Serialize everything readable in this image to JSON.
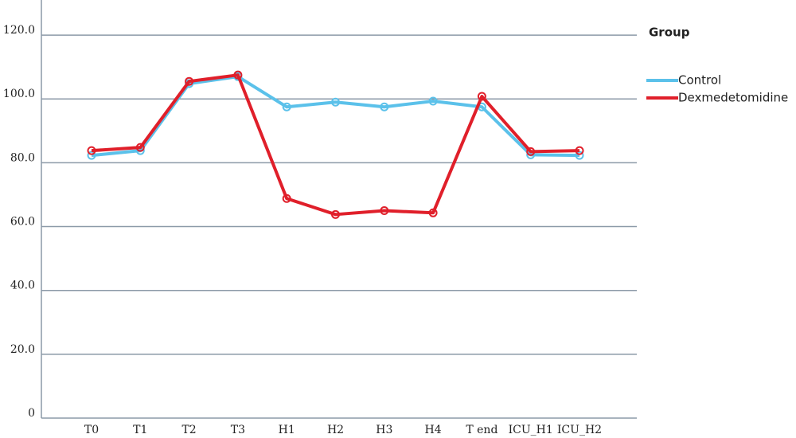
{
  "chart_data": {
    "type": "line",
    "legend_title": "Group",
    "categories": [
      "T0",
      "T1",
      "T2",
      "T3",
      "H1",
      "H2",
      "H3",
      "H4",
      "T end",
      "ICU_H1",
      "ICU_H2"
    ],
    "series": [
      {
        "name": "Control",
        "color": "#5bc1ea",
        "values": [
          82.3,
          83.8,
          104.8,
          107,
          97.5,
          99,
          97.5,
          99.3,
          97.5,
          82.5,
          82.3
        ]
      },
      {
        "name": "Dexmedetomidine",
        "color": "#e01f2a",
        "values": [
          83.8,
          84.8,
          105.5,
          107.5,
          68.8,
          63.8,
          65,
          64.3,
          100.8,
          83.5,
          83.8
        ]
      }
    ],
    "ylim": [
      0,
      131
    ],
    "yticks": [
      0,
      {
        "value": 20,
        "label": "20.0"
      },
      {
        "value": 40,
        "label": "40.0"
      },
      {
        "value": 60,
        "label": "60.0"
      },
      {
        "value": 80,
        "label": "80.0"
      },
      {
        "value": 100,
        "label": "100.0"
      },
      {
        "value": 120,
        "label": "120.0"
      }
    ],
    "grid": true
  }
}
